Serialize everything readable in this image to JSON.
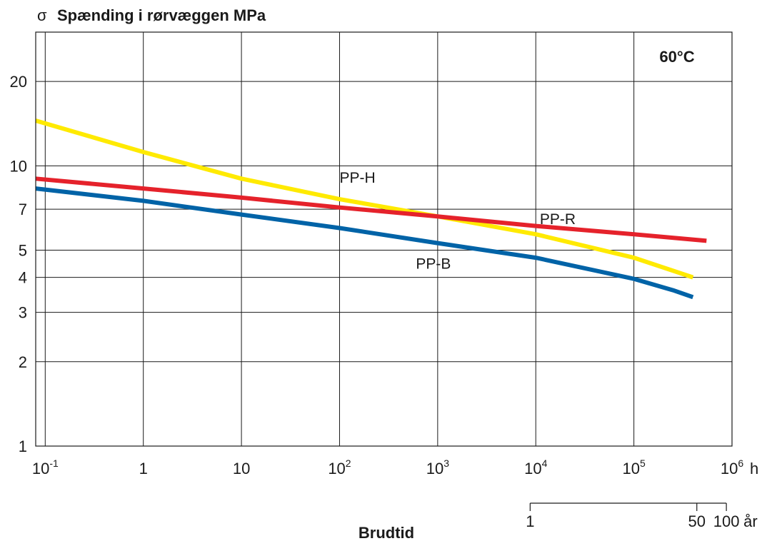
{
  "chart_data": {
    "type": "line",
    "title": "Spænding i rørvæggen MPa",
    "title_symbol": "σ",
    "ylabel": "Spænding i rørvæggen MPa",
    "xlabel": "Brudtid",
    "x_unit": "h",
    "x_scale": "log",
    "y_scale": "log",
    "xlim": [
      0.08,
      1000000
    ],
    "ylim": [
      1,
      30
    ],
    "grid": true,
    "annotation": "60°C",
    "x_ticks": [
      {
        "value": 0.1,
        "base": "10",
        "exp": "-1"
      },
      {
        "value": 1,
        "base": "1",
        "exp": ""
      },
      {
        "value": 10,
        "base": "10",
        "exp": ""
      },
      {
        "value": 100,
        "base": "10",
        "exp": "2"
      },
      {
        "value": 1000,
        "base": "10",
        "exp": "3"
      },
      {
        "value": 10000,
        "base": "10",
        "exp": "4"
      },
      {
        "value": 100000,
        "base": "10",
        "exp": "5"
      },
      {
        "value": 1000000,
        "base": "10",
        "exp": "6"
      }
    ],
    "y_ticks": [
      {
        "value": 1,
        "label": "1"
      },
      {
        "value": 2,
        "label": "2"
      },
      {
        "value": 3,
        "label": "3"
      },
      {
        "value": 4,
        "label": "4"
      },
      {
        "value": 5,
        "label": "5"
      },
      {
        "value": 7,
        "label": "7"
      },
      {
        "value": 10,
        "label": "10"
      },
      {
        "value": 20,
        "label": "20"
      }
    ],
    "secondary_axis": {
      "unit": "år",
      "ticks": [
        {
          "value": 8760,
          "label": "1"
        },
        {
          "value": 438000,
          "label": "50"
        },
        {
          "value": 876000,
          "label": "100"
        }
      ]
    },
    "series": [
      {
        "name": "PP-H",
        "color": "#ffea00",
        "x": [
          0.08,
          1,
          10,
          100,
          1000,
          10000,
          100000,
          400000
        ],
        "y": [
          14.5,
          11.2,
          9.0,
          7.6,
          6.6,
          5.7,
          4.7,
          4.0
        ]
      },
      {
        "name": "PP-R",
        "color": "#e5222b",
        "x": [
          0.08,
          1,
          10,
          100,
          1000,
          10000,
          100000,
          550000
        ],
        "y": [
          9.0,
          8.3,
          7.7,
          7.1,
          6.6,
          6.1,
          5.7,
          5.4
        ]
      },
      {
        "name": "PP-B",
        "color": "#0063a7",
        "x": [
          0.08,
          1,
          10,
          100,
          1000,
          10000,
          100000,
          250000,
          400000
        ],
        "y": [
          8.3,
          7.5,
          6.7,
          6.0,
          5.3,
          4.7,
          3.95,
          3.6,
          3.4
        ]
      }
    ],
    "series_labels": [
      {
        "series": "PP-H",
        "x": 100,
        "y": 8.7
      },
      {
        "series": "PP-R",
        "x": 11000,
        "y": 6.2
      },
      {
        "series": "PP-B",
        "x": 600,
        "y": 4.3
      }
    ]
  }
}
